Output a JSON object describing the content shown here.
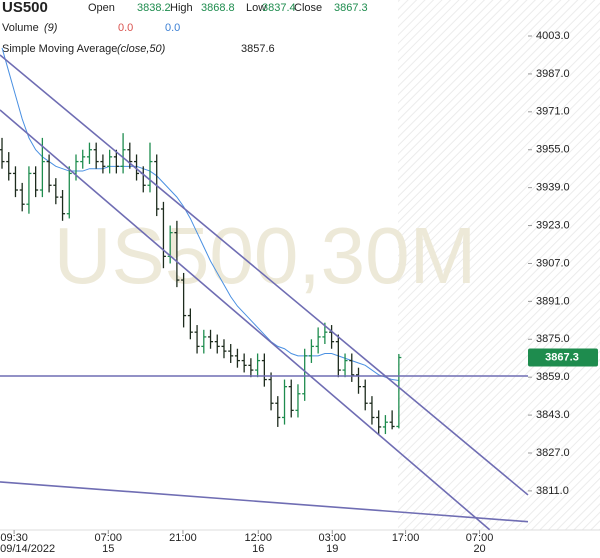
{
  "chart_data": {
    "type": "ohlc",
    "symbol": "US500",
    "watermark": "US500,30M",
    "quote_labels": [
      "Open",
      "High",
      "Low",
      "Close"
    ],
    "up_color": "#1e8c4e",
    "bar_color": "#1d2b1d",
    "x": [
      0,
      1,
      2,
      3,
      4,
      5,
      6,
      7,
      8,
      9,
      10,
      11,
      12,
      13,
      14,
      15,
      16,
      17,
      18,
      19,
      20,
      21,
      22,
      23,
      24,
      25,
      26,
      27,
      28,
      29,
      30,
      31,
      32,
      33,
      34,
      35,
      36,
      37,
      38,
      39,
      40,
      41,
      42,
      43,
      44,
      45,
      46,
      47,
      48,
      49,
      50,
      51,
      52,
      53,
      54,
      55,
      56,
      57,
      58,
      59
    ],
    "ohlc": {
      "open": [
        3955,
        3950,
        3945,
        3938,
        3932,
        3945,
        3938,
        3950,
        3940,
        3935,
        3928,
        3945,
        3950,
        3952,
        3955,
        3950,
        3948,
        3952,
        3948,
        3955,
        3950,
        3945,
        3940,
        3950,
        3930,
        3910,
        3920,
        3900,
        3885,
        3878,
        3872,
        3876,
        3874,
        3872,
        3870,
        3868,
        3866,
        3864,
        3862,
        3866,
        3858,
        3848,
        3842,
        3855,
        3845,
        3852,
        3868,
        3872,
        3876,
        3878,
        3874,
        3862,
        3866,
        3860,
        3855,
        3848,
        3842,
        3838,
        3840,
        3838.2
      ],
      "high": [
        3960,
        3954,
        3948,
        3941,
        3948,
        3948,
        3960,
        3953,
        3943,
        3938,
        3948,
        3953,
        3955,
        3958,
        3958,
        3953,
        3955,
        3955,
        3962,
        3958,
        3953,
        3948,
        3958,
        3953,
        3933,
        3923,
        3925,
        3903,
        3888,
        3881,
        3879,
        3879,
        3877,
        3875,
        3873,
        3871,
        3869,
        3867,
        3869,
        3869,
        3861,
        3851,
        3858,
        3858,
        3856,
        3871,
        3875,
        3880,
        3882,
        3881,
        3877,
        3869,
        3869,
        3863,
        3858,
        3851,
        3845,
        3843,
        3845,
        3868.8
      ],
      "low": [
        3947,
        3942,
        3935,
        3929,
        3928,
        3935,
        3935,
        3937,
        3932,
        3925,
        3926,
        3942,
        3947,
        3949,
        3947,
        3945,
        3945,
        3945,
        3945,
        3947,
        3942,
        3937,
        3937,
        3927,
        3905,
        3907,
        3897,
        3880,
        3875,
        3869,
        3869,
        3871,
        3869,
        3867,
        3865,
        3863,
        3861,
        3859,
        3859,
        3855,
        3845,
        3838,
        3839,
        3842,
        3842,
        3849,
        3865,
        3869,
        3873,
        3871,
        3859,
        3859,
        3857,
        3852,
        3845,
        3839,
        3835,
        3835,
        3837,
        3837.4
      ],
      "close": [
        3950,
        3945,
        3938,
        3932,
        3945,
        3938,
        3950,
        3940,
        3935,
        3928,
        3945,
        3950,
        3952,
        3955,
        3950,
        3948,
        3952,
        3948,
        3955,
        3950,
        3945,
        3940,
        3950,
        3930,
        3910,
        3920,
        3900,
        3885,
        3878,
        3872,
        3876,
        3874,
        3872,
        3870,
        3868,
        3866,
        3864,
        3862,
        3866,
        3858,
        3848,
        3842,
        3855,
        3845,
        3852,
        3868,
        3872,
        3876,
        3878,
        3874,
        3862,
        3866,
        3860,
        3855,
        3848,
        3842,
        3838,
        3840,
        3838.2,
        3867.3
      ]
    },
    "volume": {
      "name": "Volume",
      "params": "(9)",
      "values": [
        0,
        0
      ],
      "value_labels": [
        "0.0",
        "0.0"
      ],
      "colors": [
        "#d9534f",
        "#3b7fd4"
      ]
    },
    "sma": {
      "name": "Simple Moving Average",
      "params": "(close,50)",
      "color": "#4a90e2",
      "values": [
        3998,
        3988,
        3978,
        3968,
        3960,
        3955,
        3952,
        3950,
        3948,
        3947,
        3946,
        3946,
        3946,
        3947,
        3947,
        3947,
        3948,
        3948,
        3948,
        3948,
        3948,
        3947,
        3946,
        3944,
        3941,
        3938,
        3935,
        3931,
        3926,
        3920,
        3914,
        3908,
        3903,
        3898,
        3893,
        3889,
        3886,
        3883,
        3880,
        3877,
        3874,
        3872,
        3871,
        3869,
        3868,
        3868,
        3868,
        3868,
        3869,
        3869,
        3868,
        3867,
        3866,
        3865,
        3864,
        3862,
        3860,
        3859,
        3858,
        3857.6
      ]
    },
    "trend_lines": [
      {
        "x": [
          -0.3,
          78.2
        ],
        "y": [
          3995.0,
          3809.3
        ]
      },
      {
        "x": [
          -0.3,
          72.5
        ],
        "y": [
          3971.8,
          3794.6
        ]
      },
      {
        "x": [
          -0.3,
          78.2
        ],
        "y": [
          3859.5,
          3859.5
        ]
      },
      {
        "x": [
          -0.3,
          78.2
        ],
        "y": [
          3814.8,
          3798.0
        ]
      }
    ],
    "trend_color": "#6f6db3",
    "xlim": [
      -0.3,
      78.2
    ],
    "ylim": [
      3794.5,
      4018.2
    ],
    "xticks": [
      {
        "value": 1.8,
        "label": "09:30",
        "date": "09/14/2022"
      },
      {
        "value": 15.8,
        "label": "07:00",
        "date": "15"
      },
      {
        "value": 26.9,
        "label": "21:00"
      },
      {
        "value": 38.1,
        "label": "12:00",
        "date": "16"
      },
      {
        "value": 49.1,
        "label": "03:00",
        "date": "19"
      },
      {
        "value": 60.0,
        "label": "17:00"
      },
      {
        "value": 71.0,
        "label": "07:00",
        "date": "20"
      }
    ],
    "yticks": [
      {
        "value": 4003,
        "label": "4003.0"
      },
      {
        "value": 3987,
        "label": "3987.0"
      },
      {
        "value": 3971,
        "label": "3971.0"
      },
      {
        "value": 3955,
        "label": "3955.0"
      },
      {
        "value": 3939,
        "label": "3939.0"
      },
      {
        "value": 3923,
        "label": "3923.0"
      },
      {
        "value": 3907,
        "label": "3907.0"
      },
      {
        "value": 3891,
        "label": "3891.0"
      },
      {
        "value": 3875,
        "label": "3875.0"
      },
      {
        "value": 3859,
        "label": "3859.0"
      },
      {
        "value": 3843,
        "label": "3843.0"
      },
      {
        "value": 3827,
        "label": "3827.0"
      },
      {
        "value": 3811,
        "label": "3811.0"
      }
    ]
  }
}
